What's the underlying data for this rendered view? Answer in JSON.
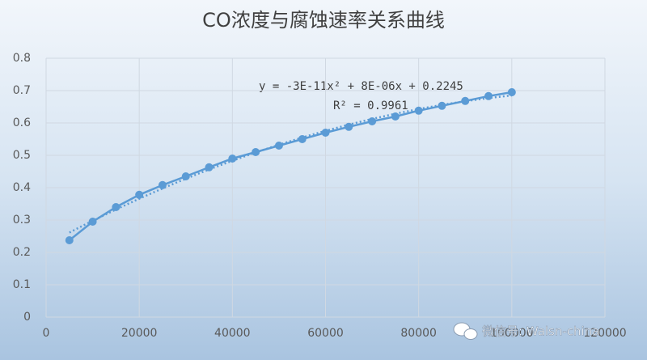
{
  "chart_data": {
    "type": "scatter-line",
    "title": "CO浓度与腐蚀速率关系曲线",
    "annotations": [
      "y = -3E-11x² + 8E-06x + 0.2245",
      "R² = 0.9961"
    ],
    "watermark": "微信号: Walsn-china",
    "x": [
      5000,
      10000,
      15000,
      20000,
      25000,
      30000,
      35000,
      40000,
      45000,
      50000,
      55000,
      60000,
      65000,
      70000,
      75000,
      80000,
      85000,
      90000,
      95000,
      100000
    ],
    "series": [
      {
        "color": "#5b9bd5",
        "values": [
          0.2375,
          0.295,
          0.34,
          0.378,
          0.408,
          0.435,
          0.463,
          0.49,
          0.51,
          0.53,
          0.55,
          0.57,
          0.588,
          0.605,
          0.62,
          0.638,
          0.653,
          0.668,
          0.683,
          0.695
        ]
      }
    ],
    "trendline": "polynomial-2",
    "xlim": [
      0,
      120000
    ],
    "xticks": [
      0,
      20000,
      40000,
      60000,
      80000,
      100000,
      120000
    ],
    "ylim": [
      0,
      0.8
    ],
    "yticks": [
      0,
      0.1,
      0.2,
      0.3,
      0.4,
      0.5,
      0.6,
      0.7,
      0.8
    ],
    "grid": true
  }
}
